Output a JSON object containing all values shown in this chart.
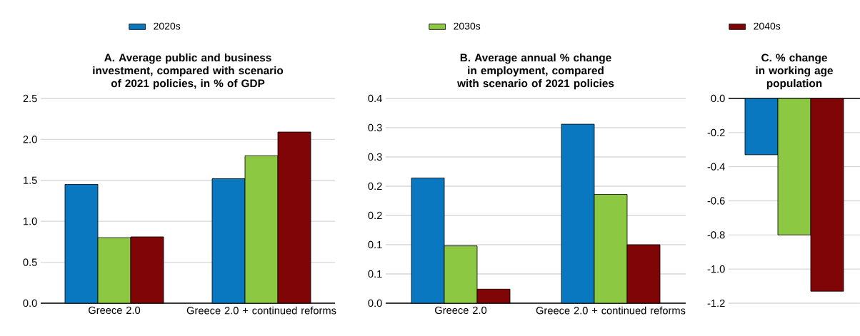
{
  "chart_data": [
    {
      "type": "bar",
      "title": "A. Average public and business investment, compared with scenario of 2021 policies, in % of GDP",
      "categories": [
        "Greece 2.0",
        "Greece 2.0 + continued reforms"
      ],
      "series": [
        {
          "name": "2020s",
          "color": "#0a78c0",
          "values": [
            1.45,
            1.52
          ]
        },
        {
          "name": "2030s",
          "color": "#8cc841",
          "values": [
            0.8,
            1.8
          ]
        },
        {
          "name": "2040s",
          "color": "#7f0506",
          "values": [
            0.81,
            2.09
          ]
        }
      ],
      "ylim": [
        0,
        2.5
      ],
      "yticks": [
        {
          "value": 0,
          "label": "0.0"
        },
        0.5,
        {
          "value": 1,
          "label": "1.0"
        },
        1.5,
        {
          "value": 2,
          "label": "2.0"
        },
        2.5
      ],
      "grid": "y",
      "legend": "top"
    },
    {
      "type": "bar",
      "title": "B. Average annual % change in employment, compared with scenario of 2021 policies",
      "categories": [
        "Greece 2.0",
        "Greece 2.0 + continued reforms"
      ],
      "series": [
        {
          "color": "#0a78c0",
          "values": [
            0.214,
            0.306
          ]
        },
        {
          "color": "#8cc841",
          "values": [
            0.098,
            0.186
          ]
        },
        {
          "color": "#7f0506",
          "values": [
            0.024,
            0.1
          ]
        }
      ],
      "ylim": [
        0,
        0.35
      ],
      "yticks": [
        {
          "value": 0,
          "label": "0.0"
        },
        {
          "value": 0.05,
          "label": "0.1"
        },
        0.1,
        {
          "value": 0.15,
          "label": "0.2"
        },
        0.2,
        {
          "value": 0.25,
          "label": "0.3"
        },
        0.3,
        {
          "value": 0.35,
          "label": "0.4"
        }
      ],
      "grid": "y"
    },
    {
      "type": "bar",
      "title": "C. % change in working age population",
      "categories": [
        null
      ],
      "series": [
        {
          "color": "#0a78c0",
          "values": [
            -0.33
          ]
        },
        {
          "color": "#8cc841",
          "values": [
            -0.8
          ]
        },
        {
          "color": "#7f0506",
          "values": [
            -1.13
          ]
        }
      ],
      "ylim": [
        -1.2,
        0
      ],
      "yticks": [
        {
          "value": 0,
          "label": "0.0"
        },
        -0.2,
        -0.4,
        -0.6,
        -0.8,
        {
          "value": -1,
          "label": "-1.0"
        },
        -1.2
      ],
      "grid": "y",
      "tick_labels": "y"
    }
  ]
}
